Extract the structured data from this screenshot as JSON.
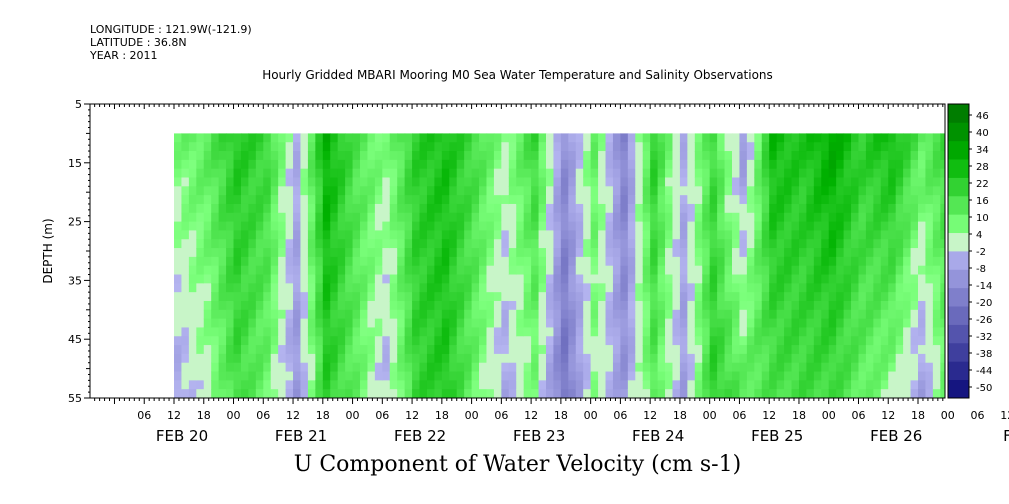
{
  "header": {
    "longitude": "LONGITUDE : 121.9W(-121.9)",
    "latitude": "LATITUDE : 36.8N",
    "year": "YEAR : 2011"
  },
  "chart_data": {
    "type": "heatmap",
    "title": "Hourly Gridded MBARI Mooring M0 Sea Water Temperature and Salinity Observations",
    "xlabel": "U Component of Water Velocity (cm s-1)",
    "ylabel": "DEPTH (m)",
    "ylim": [
      5,
      55
    ],
    "y_inverted": true,
    "y_ticks": [
      5,
      15,
      25,
      35,
      45,
      55
    ],
    "x_day_labels": [
      "FEB 20",
      "FEB 21",
      "FEB 22",
      "FEB 23",
      "FEB 24",
      "FEB 25",
      "FEB 26",
      "FEB 27"
    ],
    "x_hour_labels": [
      "06",
      "12",
      "18",
      "00",
      "06",
      "12",
      "18",
      "00",
      "06",
      "12",
      "18",
      "00",
      "06",
      "12",
      "18",
      "00",
      "06",
      "12",
      "18",
      "00",
      "06",
      "12",
      "18",
      "00",
      "06",
      "12",
      "18",
      "00",
      "06",
      "12",
      "18",
      "00"
    ],
    "data_depth_range": [
      10,
      55
    ],
    "colorbar": {
      "levels": [
        -50,
        -44,
        -38,
        -32,
        -26,
        -20,
        -14,
        -8,
        -2,
        4,
        10,
        16,
        22,
        28,
        34,
        40,
        46
      ],
      "labels": [
        "46",
        "40",
        "34",
        "28",
        "22",
        "16",
        "10",
        "4",
        "-2",
        "-8",
        "-14",
        "-20",
        "-26",
        "-32",
        "-38",
        "-44",
        "-50"
      ]
    },
    "columns": [
      {
        "time_h": 0,
        "surface": 8,
        "bottom": -6
      },
      {
        "time_h": 6,
        "surface": 12,
        "bottom": 2
      },
      {
        "time_h": 12,
        "surface": 22,
        "bottom": 16
      },
      {
        "time_h": 18,
        "surface": 18,
        "bottom": 8
      },
      {
        "time_h": 24,
        "surface": -4,
        "bottom": -10
      },
      {
        "time_h": 30,
        "surface": 28,
        "bottom": 20
      },
      {
        "time_h": 36,
        "surface": 14,
        "bottom": 10
      },
      {
        "time_h": 42,
        "surface": 6,
        "bottom": -4
      },
      {
        "time_h": 48,
        "surface": 20,
        "bottom": 18
      },
      {
        "time_h": 54,
        "surface": 24,
        "bottom": 22
      },
      {
        "time_h": 60,
        "surface": 16,
        "bottom": 8
      },
      {
        "time_h": 66,
        "surface": 4,
        "bottom": -6
      },
      {
        "time_h": 72,
        "surface": 18,
        "bottom": 6
      },
      {
        "time_h": 78,
        "surface": -12,
        "bottom": -20
      },
      {
        "time_h": 84,
        "surface": 10,
        "bottom": 4
      },
      {
        "time_h": 90,
        "surface": -16,
        "bottom": -10
      },
      {
        "time_h": 96,
        "surface": 20,
        "bottom": 12
      },
      {
        "time_h": 102,
        "surface": -4,
        "bottom": -8
      },
      {
        "time_h": 108,
        "surface": 16,
        "bottom": 20
      },
      {
        "time_h": 114,
        "surface": -10,
        "bottom": 12
      },
      {
        "time_h": 120,
        "surface": 26,
        "bottom": 14
      },
      {
        "time_h": 126,
        "surface": 22,
        "bottom": 16
      },
      {
        "time_h": 132,
        "surface": 30,
        "bottom": 16
      },
      {
        "time_h": 138,
        "surface": 20,
        "bottom": 10
      },
      {
        "time_h": 144,
        "surface": 26,
        "bottom": 4
      },
      {
        "time_h": 150,
        "surface": 12,
        "bottom": -8
      },
      {
        "time_h": 156,
        "surface": 18,
        "bottom": 12
      },
      {
        "time_h": 162,
        "surface": 22,
        "bottom": 24
      },
      {
        "time_h": 168,
        "surface": 14,
        "bottom": 18
      },
      {
        "time_h": 174,
        "surface": 8,
        "bottom": -8
      },
      {
        "time_h": 178,
        "surface": 6,
        "bottom": -10
      }
    ]
  }
}
